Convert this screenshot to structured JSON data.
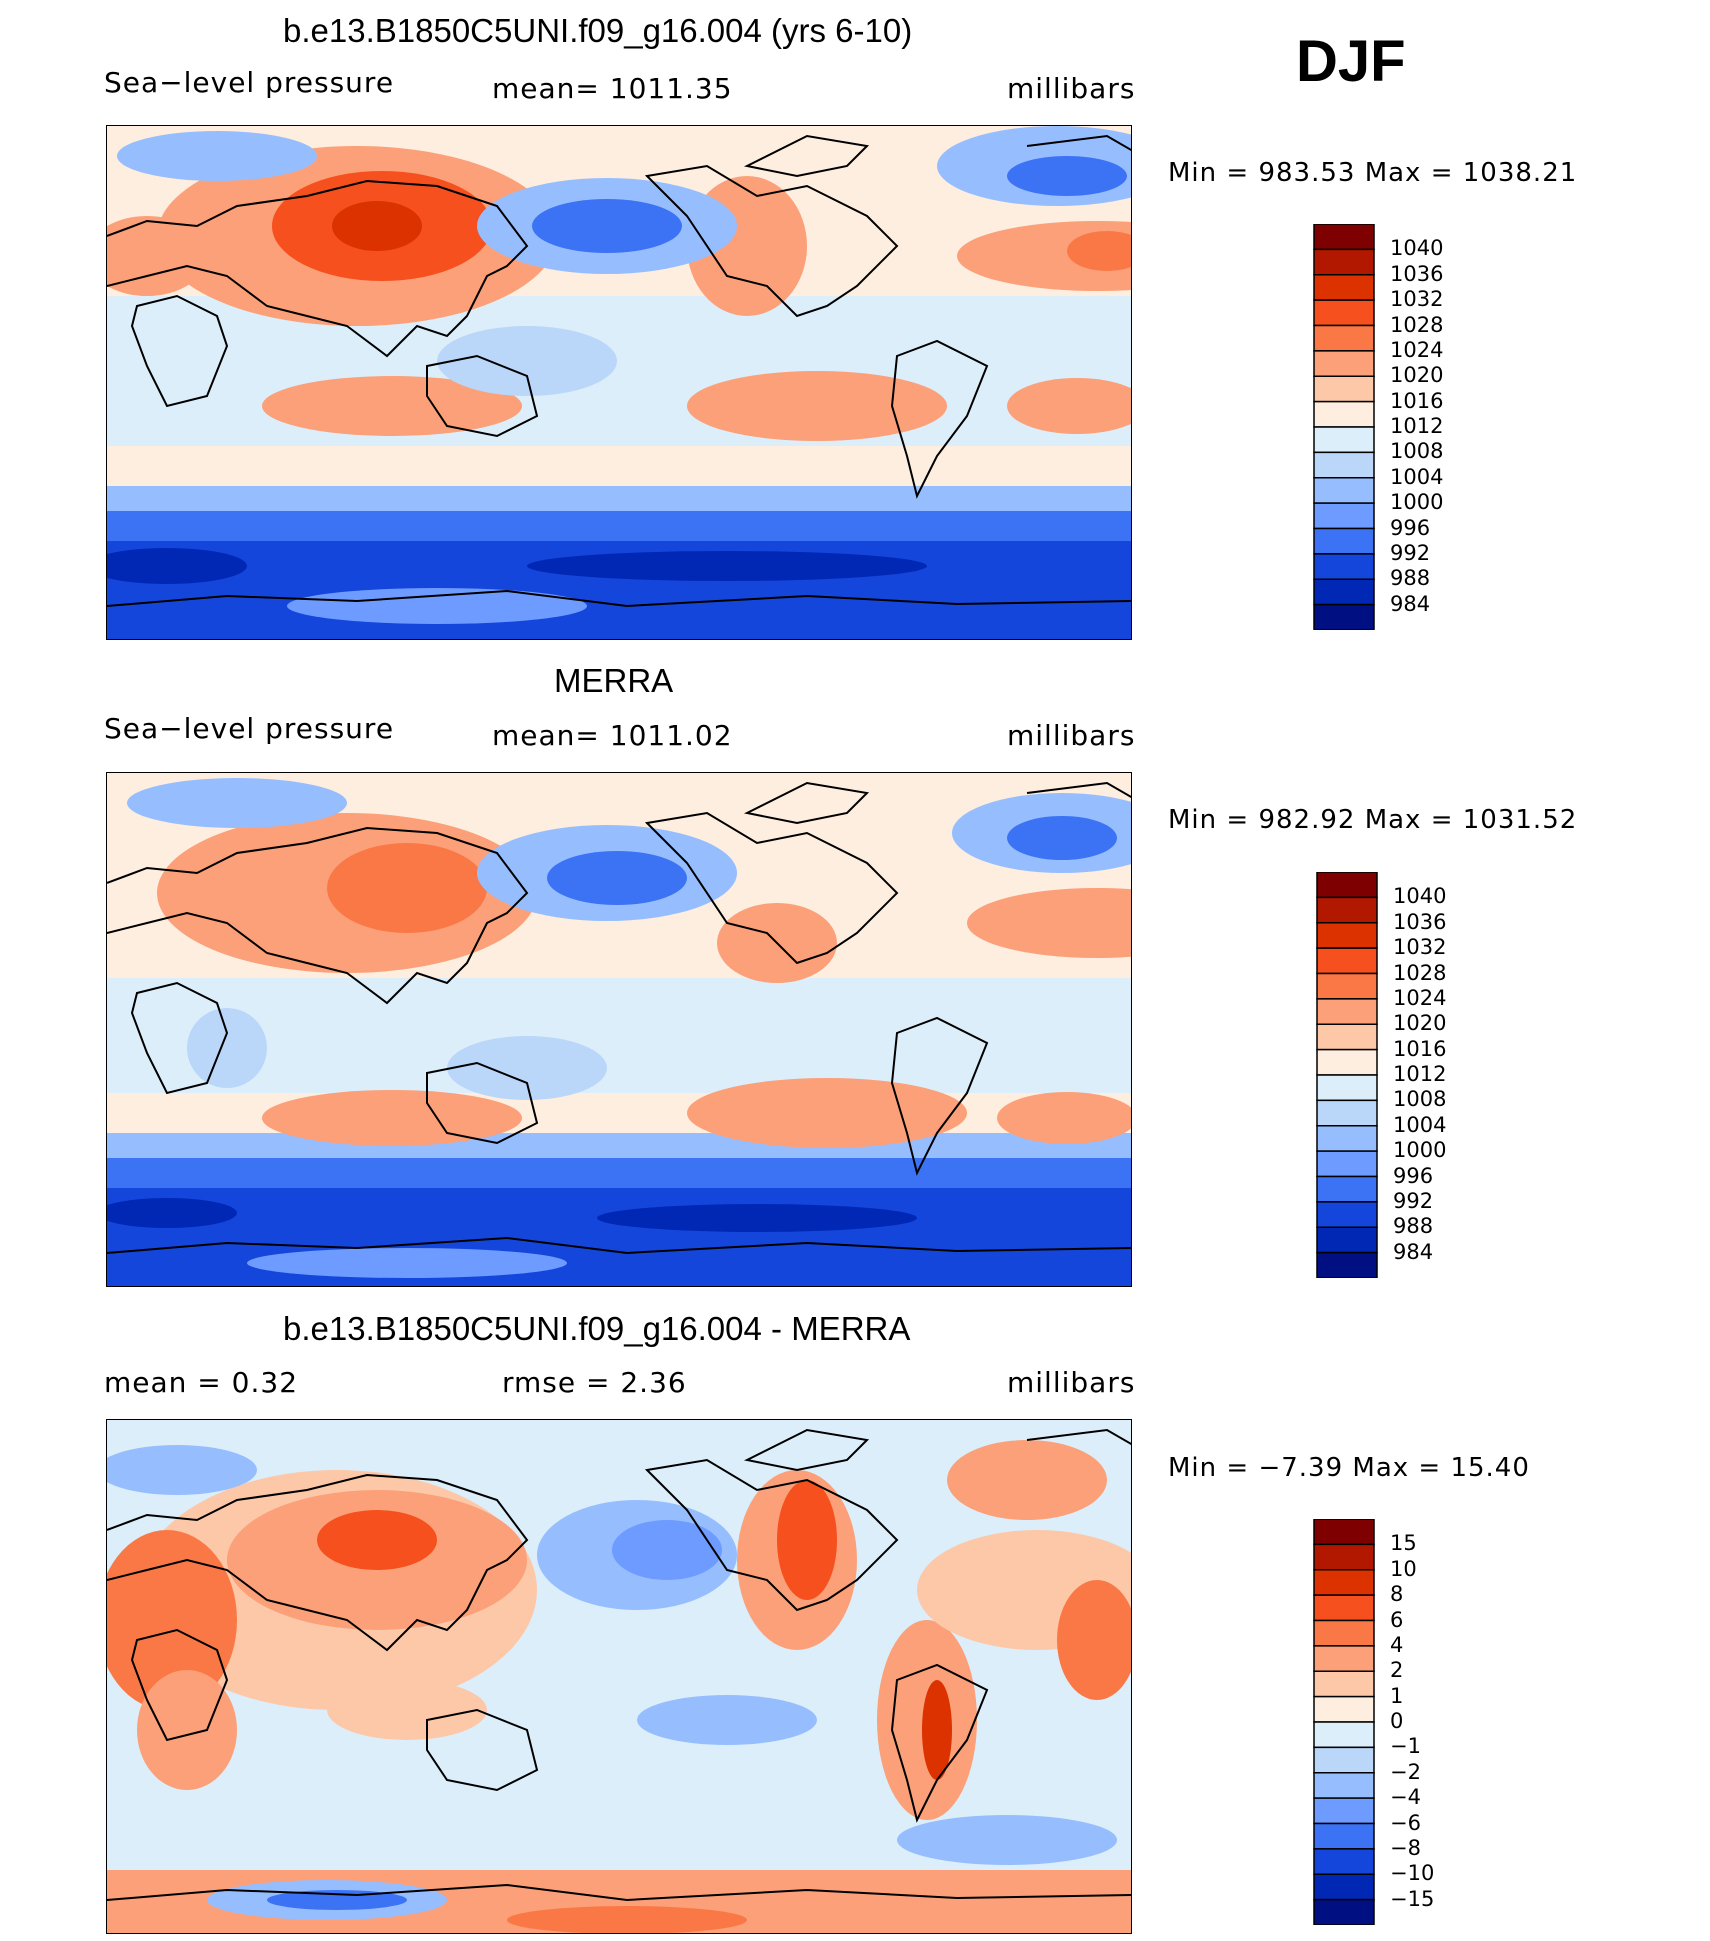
{
  "season": "DJF",
  "panels": [
    {
      "title": "b.e13.B1850C5UNI.f09_g16.004 (yrs 6-10)",
      "left_label": "Sea−level pressure",
      "mid_label": "mean=  1011.35",
      "right_label": "millibars",
      "minmax": "Min  =  983.53  Max  =  1038.21"
    },
    {
      "title": "MERRA",
      "left_label": "Sea−level pressure",
      "mid_label": "mean=  1011.02",
      "right_label": "millibars",
      "minmax": "Min  =  982.92  Max  =  1031.52"
    },
    {
      "title": "b.e13.B1850C5UNI.f09_g16.004 - MERRA",
      "left_label": "mean  =     0.32",
      "mid_label": "rmse  =     2.36",
      "right_label": "millibars",
      "minmax": "Min  =   −7.39  Max  =    15.40"
    }
  ],
  "colorbars": {
    "abs_levels": [
      "1040",
      "1036",
      "1032",
      "1028",
      "1024",
      "1020",
      "1016",
      "1012",
      "1008",
      "1004",
      "1000",
      "996",
      "992",
      "988",
      "984"
    ],
    "diff_levels": [
      "15",
      "10",
      "8",
      "6",
      "4",
      "2",
      "1",
      "0",
      "−1",
      "−2",
      "−4",
      "−6",
      "−8",
      "−10",
      "−15"
    ],
    "colors": [
      "#7f0000",
      "#b21800",
      "#dc3200",
      "#f5501e",
      "#fa7846",
      "#fba078",
      "#fdc8a8",
      "#fdeee0",
      "#dceefa",
      "#bad7fa",
      "#96beff",
      "#6e9bff",
      "#3c73f5",
      "#1446dc",
      "#0028b4",
      "#000f82"
    ]
  },
  "chart_data": [
    {
      "type": "heatmap",
      "title": "b.e13.B1850C5UNI.f09_g16.004 (yrs 6-10)",
      "variable": "Sea-level pressure",
      "units": "millibars",
      "mean": 1011.35,
      "min": 983.53,
      "max": 1038.21,
      "contour_levels": [
        984,
        988,
        992,
        996,
        1000,
        1004,
        1008,
        1012,
        1016,
        1020,
        1024,
        1028,
        1032,
        1036,
        1040
      ],
      "projection": "cylindrical equidistant, Pacific-centered"
    },
    {
      "type": "heatmap",
      "title": "MERRA",
      "variable": "Sea-level pressure",
      "units": "millibars",
      "mean": 1011.02,
      "min": 982.92,
      "max": 1031.52,
      "contour_levels": [
        984,
        988,
        992,
        996,
        1000,
        1004,
        1008,
        1012,
        1016,
        1020,
        1024,
        1028,
        1032,
        1036,
        1040
      ],
      "projection": "cylindrical equidistant, Pacific-centered"
    },
    {
      "type": "heatmap",
      "title": "b.e13.B1850C5UNI.f09_g16.004 - MERRA",
      "units": "millibars",
      "mean": 0.32,
      "rmse": 2.36,
      "min": -7.39,
      "max": 15.4,
      "contour_levels": [
        -15,
        -10,
        -8,
        -6,
        -4,
        -2,
        -1,
        0,
        1,
        2,
        4,
        6,
        8,
        10,
        15
      ],
      "projection": "cylindrical equidistant, Pacific-centered"
    }
  ]
}
